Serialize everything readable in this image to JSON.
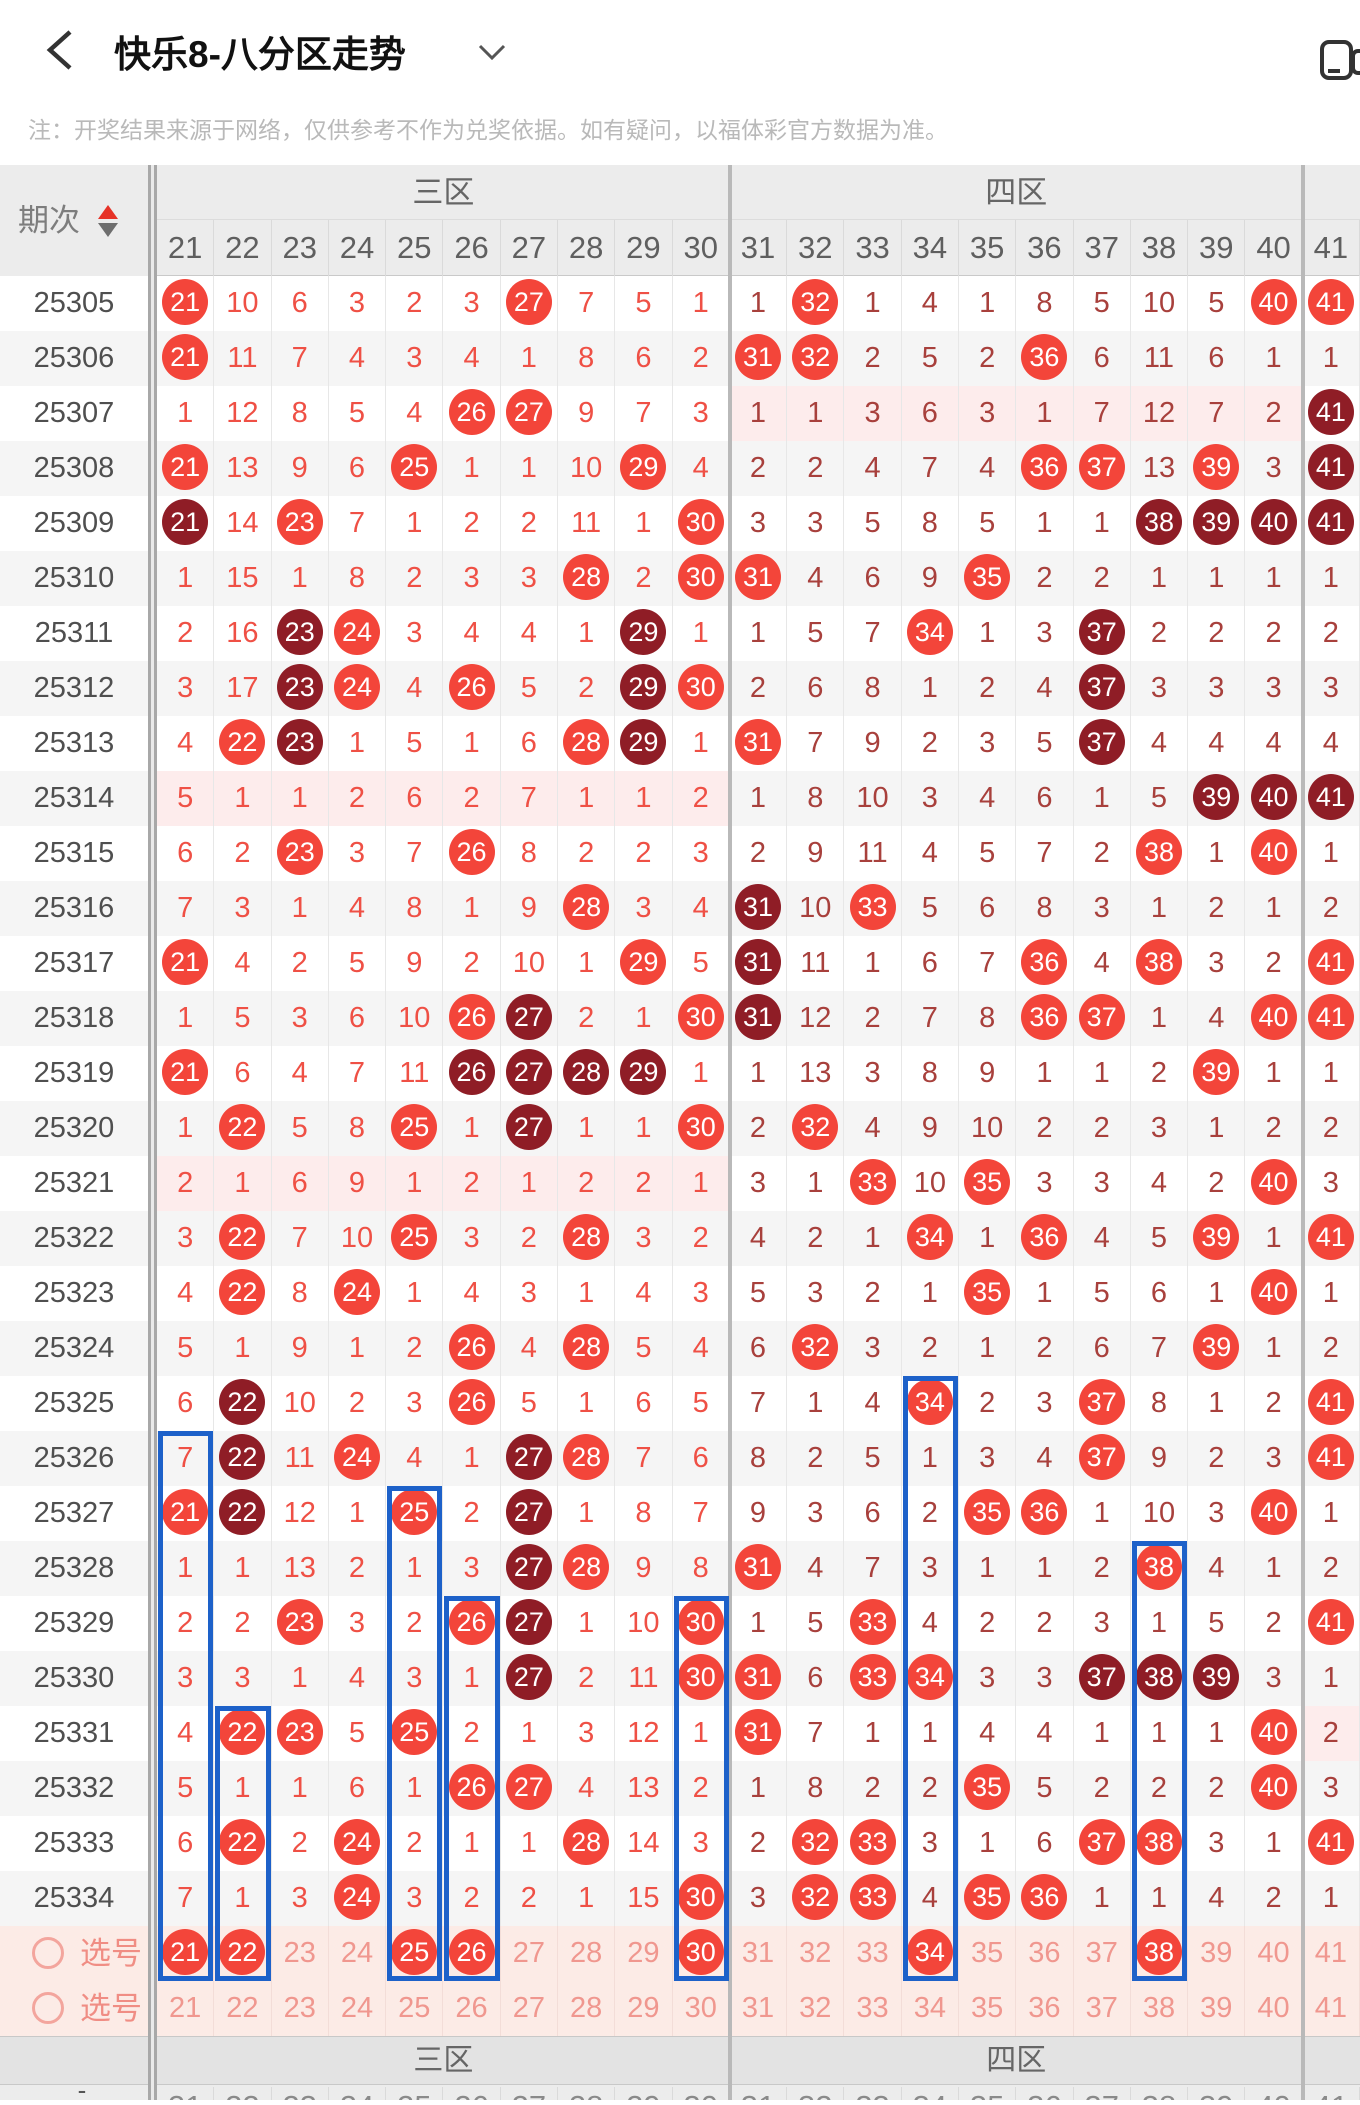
{
  "nav": {
    "title": "快乐8-八分区走势",
    "back_icon": "chevron-left-icon",
    "dropdown_icon": "chevron-down-icon",
    "window_icon": "floating-window-icon"
  },
  "notice": "注：开奖结果来源于网络，仅供参考不作为兑奖依据。如有疑问，以福体彩官方数据为准。",
  "colors": {
    "hit_circle": "#f3453a",
    "repeat_circle": "#8f1d26",
    "zone3_text": "#ef5045",
    "zone45_text": "#a8403c",
    "pick_pink": "#f0978f",
    "pink_row_bg": "#fdecec",
    "selection_row_bg": "#fcebe6",
    "highlight_blue": "#1d61c9",
    "header_bg": "#ececec"
  },
  "table": {
    "period_header": "期次",
    "sort_icon": "sort-arrows-icon",
    "columns": [
      21,
      22,
      23,
      24,
      25,
      26,
      27,
      28,
      29,
      30,
      31,
      32,
      33,
      34,
      35,
      36,
      37,
      38,
      39,
      40,
      41
    ],
    "zones": [
      {
        "label": "三区",
        "col_start": 21,
        "col_end": 30
      },
      {
        "label": "四区",
        "col_start": 31,
        "col_end": 40
      }
    ],
    "rows": [
      {
        "period": "25305",
        "cells": [
          "21c",
          "10",
          "6",
          "3",
          "2",
          "3",
          "27c",
          "7",
          "5",
          "1",
          "1",
          "32c",
          "1",
          "4",
          "1",
          "8",
          "5",
          "10",
          "5",
          "40c",
          "41c"
        ]
      },
      {
        "period": "25306",
        "cells": [
          "21c",
          "11",
          "7",
          "4",
          "3",
          "4",
          "1",
          "8",
          "6",
          "2",
          "31c",
          "32c",
          "2",
          "5",
          "2",
          "36c",
          "6",
          "11",
          "6",
          "1",
          "1"
        ]
      },
      {
        "period": "25307",
        "cells": [
          "1",
          "12",
          "8",
          "5",
          "4",
          "26c",
          "27c",
          "9",
          "7",
          "3",
          "1",
          "1",
          "3",
          "6",
          "3",
          "1",
          "7",
          "12",
          "7",
          "2",
          "41d"
        ],
        "pink": "z4"
      },
      {
        "period": "25308",
        "cells": [
          "21c",
          "13",
          "9",
          "6",
          "25c",
          "1",
          "1",
          "10",
          "29c",
          "4",
          "2",
          "2",
          "4",
          "7",
          "4",
          "36c",
          "37c",
          "13",
          "39c",
          "3",
          "41d"
        ]
      },
      {
        "period": "25309",
        "cells": [
          "21d",
          "14",
          "23c",
          "7",
          "1",
          "2",
          "2",
          "11",
          "1",
          "30c",
          "3",
          "3",
          "5",
          "8",
          "5",
          "1",
          "1",
          "38d",
          "39d",
          "40d",
          "41d"
        ]
      },
      {
        "period": "25310",
        "cells": [
          "1",
          "15",
          "1",
          "8",
          "2",
          "3",
          "3",
          "28c",
          "2",
          "30c",
          "31c",
          "4",
          "6",
          "9",
          "35c",
          "2",
          "2",
          "1",
          "1",
          "1",
          "1"
        ]
      },
      {
        "period": "25311",
        "cells": [
          "2",
          "16",
          "23d",
          "24c",
          "3",
          "4",
          "4",
          "1",
          "29d",
          "1",
          "1",
          "5",
          "7",
          "34c",
          "1",
          "3",
          "37d",
          "2",
          "2",
          "2",
          "2"
        ]
      },
      {
        "period": "25312",
        "cells": [
          "3",
          "17",
          "23d",
          "24c",
          "4",
          "26c",
          "5",
          "2",
          "29d",
          "30c",
          "2",
          "6",
          "8",
          "1",
          "2",
          "4",
          "37d",
          "3",
          "3",
          "3",
          "3"
        ]
      },
      {
        "period": "25313",
        "cells": [
          "4",
          "22c",
          "23d",
          "1",
          "5",
          "1",
          "6",
          "28c",
          "29d",
          "1",
          "31c",
          "7",
          "9",
          "2",
          "3",
          "5",
          "37d",
          "4",
          "4",
          "4",
          "4"
        ]
      },
      {
        "period": "25314",
        "cells": [
          "5",
          "1",
          "1",
          "2",
          "6",
          "2",
          "7",
          "1",
          "1",
          "2",
          "1",
          "8",
          "10",
          "3",
          "4",
          "6",
          "1",
          "5",
          "39d",
          "40d",
          "41d"
        ],
        "pink": "z3"
      },
      {
        "period": "25315",
        "cells": [
          "6",
          "2",
          "23c",
          "3",
          "7",
          "26c",
          "8",
          "2",
          "2",
          "3",
          "2",
          "9",
          "11",
          "4",
          "5",
          "7",
          "2",
          "38c",
          "1",
          "40c",
          "1"
        ]
      },
      {
        "period": "25316",
        "cells": [
          "7",
          "3",
          "1",
          "4",
          "8",
          "1",
          "9",
          "28c",
          "3",
          "4",
          "31d",
          "10",
          "33c",
          "5",
          "6",
          "8",
          "3",
          "1",
          "2",
          "1",
          "2"
        ]
      },
      {
        "period": "25317",
        "cells": [
          "21c",
          "4",
          "2",
          "5",
          "9",
          "2",
          "10",
          "1",
          "29c",
          "5",
          "31d",
          "11",
          "1",
          "6",
          "7",
          "36c",
          "4",
          "38c",
          "3",
          "2",
          "41c"
        ]
      },
      {
        "period": "25318",
        "cells": [
          "1",
          "5",
          "3",
          "6",
          "10",
          "26c",
          "27d",
          "2",
          "1",
          "30c",
          "31d",
          "12",
          "2",
          "7",
          "8",
          "36c",
          "37c",
          "1",
          "4",
          "40c",
          "41c"
        ]
      },
      {
        "period": "25319",
        "cells": [
          "21c",
          "6",
          "4",
          "7",
          "11",
          "26d",
          "27d",
          "28d",
          "29d",
          "1",
          "1",
          "13",
          "3",
          "8",
          "9",
          "1",
          "1",
          "2",
          "39c",
          "1",
          "1"
        ]
      },
      {
        "period": "25320",
        "cells": [
          "1",
          "22c",
          "5",
          "8",
          "25c",
          "1",
          "27d",
          "1",
          "1",
          "30c",
          "2",
          "32c",
          "4",
          "9",
          "10",
          "2",
          "2",
          "3",
          "1",
          "2",
          "2"
        ]
      },
      {
        "period": "25321",
        "cells": [
          "2",
          "1",
          "6",
          "9",
          "1",
          "2",
          "1",
          "2",
          "2",
          "1",
          "3",
          "1",
          "33c",
          "10",
          "35c",
          "3",
          "3",
          "4",
          "2",
          "40c",
          "3"
        ],
        "pink": "z3"
      },
      {
        "period": "25322",
        "cells": [
          "3",
          "22c",
          "7",
          "10",
          "25c",
          "3",
          "2",
          "28c",
          "3",
          "2",
          "4",
          "2",
          "1",
          "34c",
          "1",
          "36c",
          "4",
          "5",
          "39c",
          "1",
          "41c"
        ]
      },
      {
        "period": "25323",
        "cells": [
          "4",
          "22c",
          "8",
          "24c",
          "1",
          "4",
          "3",
          "1",
          "4",
          "3",
          "5",
          "3",
          "2",
          "1",
          "35c",
          "1",
          "5",
          "6",
          "1",
          "40c",
          "1"
        ]
      },
      {
        "period": "25324",
        "cells": [
          "5",
          "1",
          "9",
          "1",
          "2",
          "26c",
          "4",
          "28c",
          "5",
          "4",
          "6",
          "32c",
          "3",
          "2",
          "1",
          "2",
          "6",
          "7",
          "39c",
          "1",
          "2"
        ]
      },
      {
        "period": "25325",
        "cells": [
          "6",
          "22d",
          "10",
          "2",
          "3",
          "26c",
          "5",
          "1",
          "6",
          "5",
          "7",
          "1",
          "4",
          "34c",
          "2",
          "3",
          "37c",
          "8",
          "1",
          "2",
          "41c"
        ]
      },
      {
        "period": "25326",
        "cells": [
          "7",
          "22d",
          "11",
          "24c",
          "4",
          "1",
          "27d",
          "28c",
          "7",
          "6",
          "8",
          "2",
          "5",
          "1",
          "3",
          "4",
          "37c",
          "9",
          "2",
          "3",
          "41c"
        ]
      },
      {
        "period": "25327",
        "cells": [
          "21c",
          "22d",
          "12",
          "1",
          "25c",
          "2",
          "27d",
          "1",
          "8",
          "7",
          "9",
          "3",
          "6",
          "2",
          "35c",
          "36c",
          "1",
          "10",
          "3",
          "40c",
          "1"
        ]
      },
      {
        "period": "25328",
        "cells": [
          "1",
          "1",
          "13",
          "2",
          "1",
          "3",
          "27d",
          "28c",
          "9",
          "8",
          "31c",
          "4",
          "7",
          "3",
          "1",
          "1",
          "2",
          "38c",
          "4",
          "1",
          "2"
        ]
      },
      {
        "period": "25329",
        "cells": [
          "2",
          "2",
          "23c",
          "3",
          "2",
          "26c",
          "27d",
          "1",
          "10",
          "30c",
          "1",
          "5",
          "33c",
          "4",
          "2",
          "2",
          "3",
          "1",
          "5",
          "2",
          "41c"
        ]
      },
      {
        "period": "25330",
        "cells": [
          "3",
          "3",
          "1",
          "4",
          "3",
          "1",
          "27d",
          "2",
          "11",
          "30c",
          "31c",
          "6",
          "33c",
          "34c",
          "3",
          "3",
          "37d",
          "38d",
          "39d",
          "3",
          "1"
        ]
      },
      {
        "period": "25331",
        "cells": [
          "4",
          "22c",
          "23c",
          "5",
          "25c",
          "2",
          "1",
          "3",
          "12",
          "1",
          "31c",
          "7",
          "1",
          "1",
          "4",
          "4",
          "1",
          "1",
          "1",
          "40c",
          "2"
        ],
        "pink": "z5"
      },
      {
        "period": "25332",
        "cells": [
          "5",
          "1",
          "1",
          "6",
          "1",
          "26c",
          "27c",
          "4",
          "13",
          "2",
          "1",
          "8",
          "2",
          "2",
          "35c",
          "5",
          "2",
          "2",
          "2",
          "40c",
          "3"
        ]
      },
      {
        "period": "25333",
        "cells": [
          "6",
          "22c",
          "2",
          "24c",
          "2",
          "1",
          "1",
          "28c",
          "14",
          "3",
          "2",
          "32c",
          "33c",
          "3",
          "1",
          "6",
          "37c",
          "38c",
          "3",
          "1",
          "41c"
        ]
      },
      {
        "period": "25334",
        "cells": [
          "7",
          "1",
          "3",
          "24c",
          "3",
          "2",
          "2",
          "1",
          "15",
          "30c",
          "3",
          "32c",
          "33c",
          "4",
          "35c",
          "36c",
          "1",
          "1",
          "4",
          "2",
          "1"
        ]
      }
    ],
    "selection_rows": [
      {
        "label": "选号",
        "picks": [
          21,
          22,
          25,
          26,
          30,
          34,
          38
        ]
      },
      {
        "label": "选号",
        "picks": []
      }
    ],
    "highlight_boxes": [
      {
        "col": 21,
        "start_period": "25326"
      },
      {
        "col": 22,
        "start_period": "25331"
      },
      {
        "col": 25,
        "start_period": "25327"
      },
      {
        "col": 26,
        "start_period": "25329"
      },
      {
        "col": 30,
        "start_period": "25329"
      },
      {
        "col": 34,
        "start_period": "25325"
      },
      {
        "col": 38,
        "start_period": "25328"
      }
    ],
    "footer": {
      "zone_labels": [
        "三区",
        "四区"
      ],
      "period_cell": "-"
    }
  }
}
